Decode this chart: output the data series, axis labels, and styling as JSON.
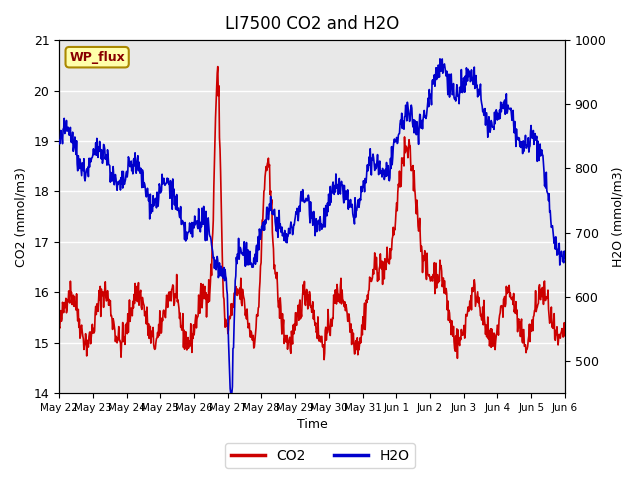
{
  "title": "LI7500 CO2 and H2O",
  "xlabel": "Time",
  "ylabel_left": "CO2 (mmol/m3)",
  "ylabel_right": "H2O (mmol/m3)",
  "ylim_left": [
    14.0,
    21.0
  ],
  "ylim_right": [
    450,
    1000
  ],
  "site_label": "WP_flux",
  "background_color": "#e8e8e8",
  "grid_color": "white",
  "co2_color": "#cc0000",
  "h2o_color": "#0000cc",
  "tick_labels": [
    "May 22",
    "May 23",
    "May 24",
    "May 25",
    "May 26",
    "May 27",
    "May 28",
    "May 29",
    "May 30",
    "May 31",
    "Jun 1",
    "Jun 2",
    "Jun 3",
    "Jun 4",
    "Jun 5",
    "Jun 6"
  ],
  "n_days": 15
}
